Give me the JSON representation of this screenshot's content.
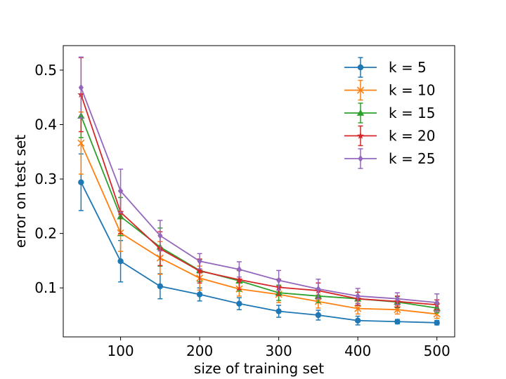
{
  "chart_data": {
    "type": "line",
    "title": "",
    "xlabel": "size of training set",
    "ylabel": "error on test set",
    "xlim": [
      27.5,
      522.5
    ],
    "ylim": [
      0.01,
      0.545
    ],
    "xticks": [
      100,
      200,
      300,
      400,
      500
    ],
    "yticks": [
      0.1,
      0.2,
      0.3,
      0.4,
      0.5
    ],
    "grid": false,
    "legend_position": "top-right",
    "x": [
      50,
      100,
      150,
      200,
      250,
      300,
      350,
      400,
      450,
      500
    ],
    "series": [
      {
        "name": "k = 5",
        "color": "#1f77b4",
        "marker": "circle",
        "values": [
          0.294,
          0.149,
          0.103,
          0.088,
          0.071,
          0.057,
          0.05,
          0.04,
          0.038,
          0.036
        ],
        "errors": [
          0.052,
          0.038,
          0.023,
          0.012,
          0.011,
          0.011,
          0.009,
          0.008,
          0.004,
          0.004
        ]
      },
      {
        "name": "k = 10",
        "color": "#ff7f0e",
        "marker": "x",
        "values": [
          0.366,
          0.201,
          0.155,
          0.118,
          0.098,
          0.088,
          0.075,
          0.062,
          0.06,
          0.052
        ],
        "errors": [
          0.057,
          0.034,
          0.03,
          0.022,
          0.013,
          0.015,
          0.012,
          0.01,
          0.008,
          0.008
        ]
      },
      {
        "name": "k = 15",
        "color": "#2ca02c",
        "marker": "triangle",
        "values": [
          0.416,
          0.231,
          0.175,
          0.132,
          0.113,
          0.091,
          0.085,
          0.08,
          0.074,
          0.063
        ],
        "errors": [
          0.04,
          0.035,
          0.035,
          0.02,
          0.019,
          0.014,
          0.012,
          0.012,
          0.01,
          0.009
        ]
      },
      {
        "name": "k = 20",
        "color": "#d62728",
        "marker": "star",
        "values": [
          0.455,
          0.239,
          0.172,
          0.131,
          0.115,
          0.101,
          0.095,
          0.08,
          0.075,
          0.069
        ],
        "errors": [
          0.068,
          0.039,
          0.031,
          0.022,
          0.018,
          0.015,
          0.014,
          0.012,
          0.01,
          0.009
        ]
      },
      {
        "name": "k = 25",
        "color": "#9467bd",
        "marker": "diamond",
        "values": [
          0.468,
          0.278,
          0.196,
          0.149,
          0.134,
          0.114,
          0.098,
          0.085,
          0.08,
          0.073
        ],
        "errors": [
          0.056,
          0.04,
          0.028,
          0.014,
          0.014,
          0.018,
          0.018,
          0.014,
          0.011,
          0.016
        ]
      }
    ]
  }
}
